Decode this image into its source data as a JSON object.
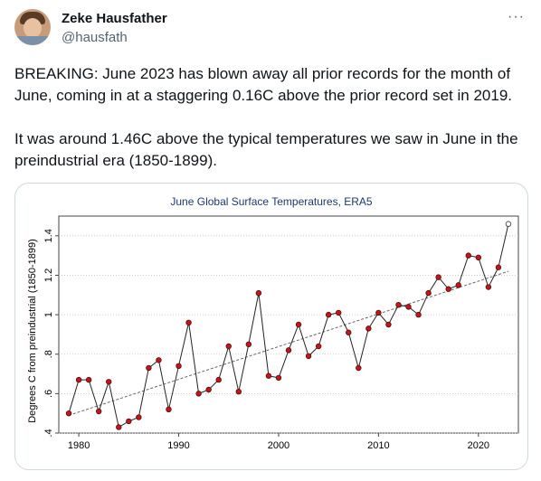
{
  "tweet": {
    "author_name": "Zeke Hausfather",
    "author_handle": "@hausfath",
    "more_icon": "more-horizontal-icon",
    "paragraphs": [
      "BREAKING: June 2023 has blown away all prior records for the month of June, coming in at a staggering 0.16C above the prior record set in 2019.",
      "It was around 1.46C above the typical temperatures we saw in June in the preindustrial era (1850-1899)."
    ]
  },
  "chart_data": {
    "type": "line",
    "title": "June Global Surface Temperatures, ERA5",
    "xlabel": "",
    "ylabel": "Degrees C from preindustrial (1850-1899)",
    "xlim": [
      1978,
      2024
    ],
    "ylim": [
      0.4,
      1.5
    ],
    "xticks": [
      1980,
      1990,
      2000,
      2010,
      2020
    ],
    "yticks": [
      0.4,
      0.6,
      0.8,
      1.0,
      1.2,
      1.4
    ],
    "ytick_labels": [
      ".4",
      ".6",
      ".8",
      "1",
      "1.2",
      "1.4"
    ],
    "grid": true,
    "x": [
      1979,
      1980,
      1981,
      1982,
      1983,
      1984,
      1985,
      1986,
      1987,
      1988,
      1989,
      1990,
      1991,
      1992,
      1993,
      1994,
      1995,
      1996,
      1997,
      1998,
      1999,
      2000,
      2001,
      2002,
      2003,
      2004,
      2005,
      2006,
      2007,
      2008,
      2009,
      2010,
      2011,
      2012,
      2013,
      2014,
      2015,
      2016,
      2017,
      2018,
      2019,
      2020,
      2021,
      2022,
      2023
    ],
    "y": [
      0.5,
      0.67,
      0.67,
      0.51,
      0.66,
      0.43,
      0.46,
      0.48,
      0.73,
      0.77,
      0.52,
      0.74,
      0.96,
      0.6,
      0.62,
      0.67,
      0.84,
      0.61,
      0.85,
      1.11,
      0.69,
      0.68,
      0.82,
      0.95,
      0.79,
      0.84,
      1.0,
      1.01,
      0.91,
      0.73,
      0.93,
      1.01,
      0.95,
      1.05,
      1.04,
      1.0,
      1.11,
      1.19,
      1.13,
      1.15,
      1.3,
      1.29,
      1.14,
      1.24,
      1.46
    ],
    "trend": {
      "x": [
        1979,
        2023
      ],
      "y": [
        0.49,
        1.22
      ]
    },
    "colors": {
      "point": "#c0161c",
      "line": "#222222",
      "trend": "#666666",
      "grid": "#bfbfbf",
      "title": "#1a3a6b"
    }
  }
}
